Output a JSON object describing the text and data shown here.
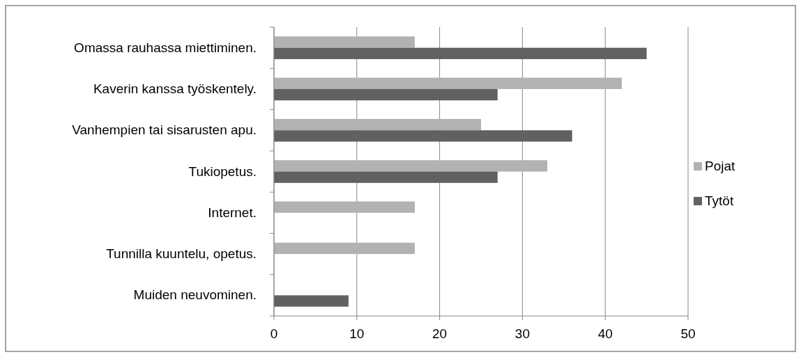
{
  "chart_data": {
    "type": "bar",
    "orientation": "horizontal",
    "categories": [
      "Omassa rauhassa miettiminen.",
      "Kaverin kanssa työskentely.",
      "Vanhempien tai sisarusten apu.",
      "Tukiopetus.",
      "Internet.",
      "Tunnilla kuuntelu, opetus.",
      "Muiden neuvominen."
    ],
    "series": [
      {
        "name": "Pojat",
        "color": "#b2b2b2",
        "values": [
          17,
          42,
          25,
          33,
          17,
          17,
          null
        ]
      },
      {
        "name": "Tytöt",
        "color": "#616161",
        "values": [
          45,
          27,
          36,
          27,
          null,
          null,
          9
        ]
      }
    ],
    "xlim": [
      0,
      50
    ],
    "xticks": [
      0,
      10,
      20,
      30,
      40,
      50
    ],
    "grid": "x",
    "legend": "right"
  }
}
